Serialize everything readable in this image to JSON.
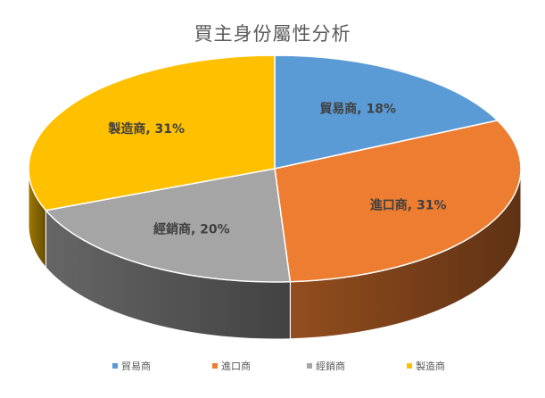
{
  "chart_data": {
    "type": "pie",
    "title": "買主身份屬性分析",
    "categories": [
      "貿易商",
      "進口商",
      "經銷商",
      "製造商"
    ],
    "values": [
      18,
      31,
      20,
      31
    ],
    "data_labels": [
      "貿易商, 18%",
      "進口商, 31%",
      "經銷商, 20%",
      "製造商, 31%"
    ],
    "colors": [
      "#5B9BD5",
      "#ED7D31",
      "#A5A5A5",
      "#FFC000"
    ],
    "style": "3d-pie",
    "legend": "bottom"
  }
}
